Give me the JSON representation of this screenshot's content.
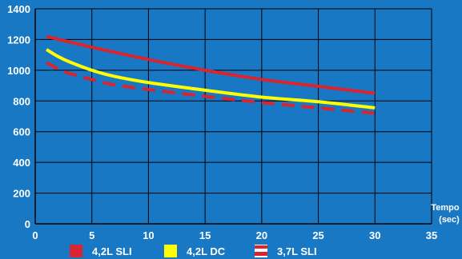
{
  "chart_data": {
    "type": "line",
    "background": "#1878c4",
    "grid": true,
    "xlabel": "Tempo",
    "xunit": "(sec)",
    "ylabel": "",
    "xlim": [
      0,
      35
    ],
    "ylim": [
      0,
      1400
    ],
    "xticks": [
      "0",
      "5",
      "10",
      "15",
      "20",
      "25",
      "30",
      "35"
    ],
    "yticks": [
      "0",
      "200",
      "400",
      "600",
      "800",
      "1000",
      "1200",
      "1400"
    ],
    "legend_position": "bottom",
    "series": [
      {
        "name": "4,2L SLI",
        "color": "#d9252f",
        "style": "solid",
        "x": [
          1,
          5,
          10,
          15,
          20,
          25,
          30
        ],
        "y": [
          1220,
          1150,
          1070,
          1000,
          940,
          895,
          850
        ]
      },
      {
        "name": "4,2L DC",
        "color": "#ffff00",
        "style": "solid",
        "x": [
          1,
          2,
          3,
          5,
          7,
          10,
          15,
          20,
          25,
          30
        ],
        "y": [
          1135,
          1090,
          1055,
          1000,
          960,
          920,
          870,
          825,
          795,
          755
        ]
      },
      {
        "name": "3,7L SLI",
        "color": "#d9252f",
        "style": "dashed",
        "x": [
          1,
          2,
          3,
          5,
          7,
          10,
          15,
          20,
          25,
          30
        ],
        "y": [
          1050,
          1010,
          980,
          940,
          905,
          875,
          830,
          790,
          755,
          720
        ]
      }
    ]
  }
}
